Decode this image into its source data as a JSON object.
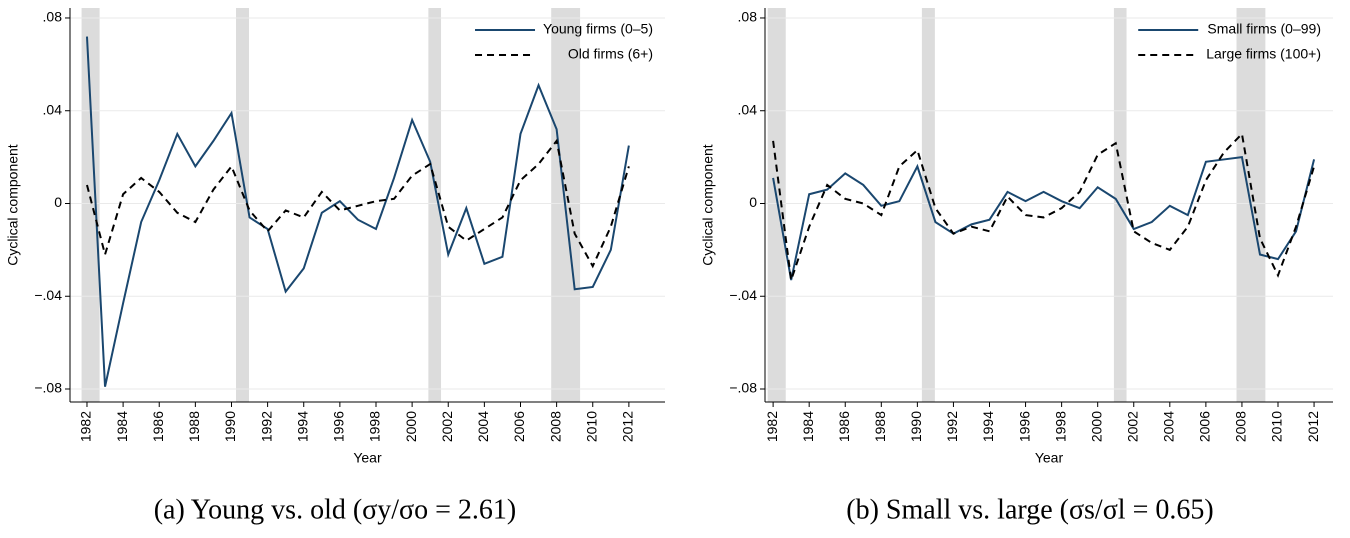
{
  "chart_data": [
    {
      "type": "line",
      "caption": "(a) Young vs. old (σy/σo = 2.61)",
      "y_label": "Cyclical component",
      "x_label": "Year",
      "x": [
        1982,
        1983,
        1984,
        1985,
        1986,
        1987,
        1988,
        1989,
        1990,
        1991,
        1992,
        1993,
        1994,
        1995,
        1996,
        1997,
        1998,
        1999,
        2000,
        2001,
        2002,
        2003,
        2004,
        2005,
        2006,
        2007,
        2008,
        2009,
        2010,
        2011,
        2012
      ],
      "series": [
        {
          "name": "Young firms (0–5)",
          "color": "#1a476f",
          "dashed": false,
          "values": [
            0.072,
            -0.079,
            -0.043,
            -0.008,
            0.01,
            0.03,
            0.016,
            0.027,
            0.039,
            -0.006,
            -0.011,
            -0.038,
            -0.028,
            -0.004,
            0.001,
            -0.007,
            -0.011,
            0.011,
            0.036,
            0.018,
            -0.022,
            -0.002,
            -0.026,
            -0.023,
            0.03,
            0.051,
            0.032,
            -0.037,
            -0.036,
            -0.02,
            0.025
          ]
        },
        {
          "name": "Old firms (6+)",
          "color": "#000000",
          "dashed": true,
          "values": [
            0.008,
            -0.022,
            0.004,
            0.011,
            0.005,
            -0.004,
            -0.008,
            0.006,
            0.016,
            -0.003,
            -0.012,
            -0.003,
            -0.006,
            0.005,
            -0.003,
            -0.001,
            0.001,
            0.002,
            0.012,
            0.017,
            -0.01,
            -0.016,
            -0.011,
            -0.006,
            0.01,
            0.017,
            0.027,
            -0.013,
            -0.027,
            -0.01,
            0.016
          ]
        }
      ],
      "recessions": [
        [
          1981.7,
          1982.7
        ],
        [
          1990.25,
          1990.97
        ],
        [
          2000.9,
          2001.6
        ],
        [
          2007.7,
          2009.3
        ]
      ],
      "xlim": [
        1981.06,
        2014
      ],
      "ylim": [
        -0.0856,
        0.0843
      ],
      "xticks": [
        1982,
        1984,
        1986,
        1988,
        1990,
        1992,
        1994,
        1996,
        1998,
        2000,
        2002,
        2004,
        2006,
        2008,
        2010,
        2012
      ],
      "yticks": [
        {
          "value": 0.08,
          "label": ".08"
        },
        {
          "value": 0.04,
          "label": ".04"
        },
        0,
        {
          "value": -0.04,
          "label": "−.04"
        },
        {
          "value": -0.08,
          "label": "−.08"
        }
      ],
      "grid": true
    },
    {
      "type": "line",
      "caption": "(b) Small vs. large (σs/σl = 0.65)",
      "y_label": "Cyclical component",
      "x_label": "Year",
      "x": [
        1982,
        1983,
        1984,
        1985,
        1986,
        1987,
        1988,
        1989,
        1990,
        1991,
        1992,
        1993,
        1994,
        1995,
        1996,
        1997,
        1998,
        1999,
        2000,
        2001,
        2002,
        2003,
        2004,
        2005,
        2006,
        2007,
        2008,
        2009,
        2010,
        2011,
        2012
      ],
      "series": [
        {
          "name": "Small firms (0–99)",
          "color": "#1a476f",
          "dashed": false,
          "values": [
            0.011,
            -0.033,
            0.004,
            0.006,
            0.013,
            0.008,
            -0.001,
            0.001,
            0.016,
            -0.008,
            -0.013,
            -0.009,
            -0.007,
            0.005,
            0.001,
            0.005,
            0.001,
            -0.002,
            0.007,
            0.002,
            -0.011,
            -0.008,
            -0.001,
            -0.005,
            0.018,
            0.019,
            0.02,
            -0.022,
            -0.024,
            -0.012,
            0.019
          ]
        },
        {
          "name": "Large firms (100+)",
          "color": "#000000",
          "dashed": true,
          "values": [
            0.027,
            -0.033,
            -0.01,
            0.008,
            0.002,
            0.0,
            -0.005,
            0.016,
            0.023,
            -0.002,
            -0.013,
            -0.01,
            -0.012,
            0.003,
            -0.005,
            -0.006,
            -0.002,
            0.005,
            0.021,
            0.026,
            -0.012,
            -0.017,
            -0.02,
            -0.01,
            0.01,
            0.022,
            0.03,
            -0.015,
            -0.031,
            -0.01,
            0.016
          ]
        }
      ],
      "recessions": [
        [
          1981.7,
          1982.7
        ],
        [
          1990.25,
          1990.97
        ],
        [
          2000.9,
          2001.6
        ],
        [
          2007.7,
          2009.3
        ]
      ],
      "xlim": [
        1981.55,
        2013.05
      ],
      "ylim": [
        -0.0856,
        0.0843
      ],
      "xticks": [
        1982,
        1984,
        1986,
        1988,
        1990,
        1992,
        1994,
        1996,
        1998,
        2000,
        2002,
        2004,
        2006,
        2008,
        2010,
        2012
      ],
      "yticks": [
        {
          "value": 0.08,
          "label": ".08"
        },
        {
          "value": 0.04,
          "label": ".04"
        },
        0,
        {
          "value": -0.04,
          "label": "−.04"
        },
        {
          "value": -0.08,
          "label": "−.08"
        }
      ],
      "grid": true
    }
  ]
}
